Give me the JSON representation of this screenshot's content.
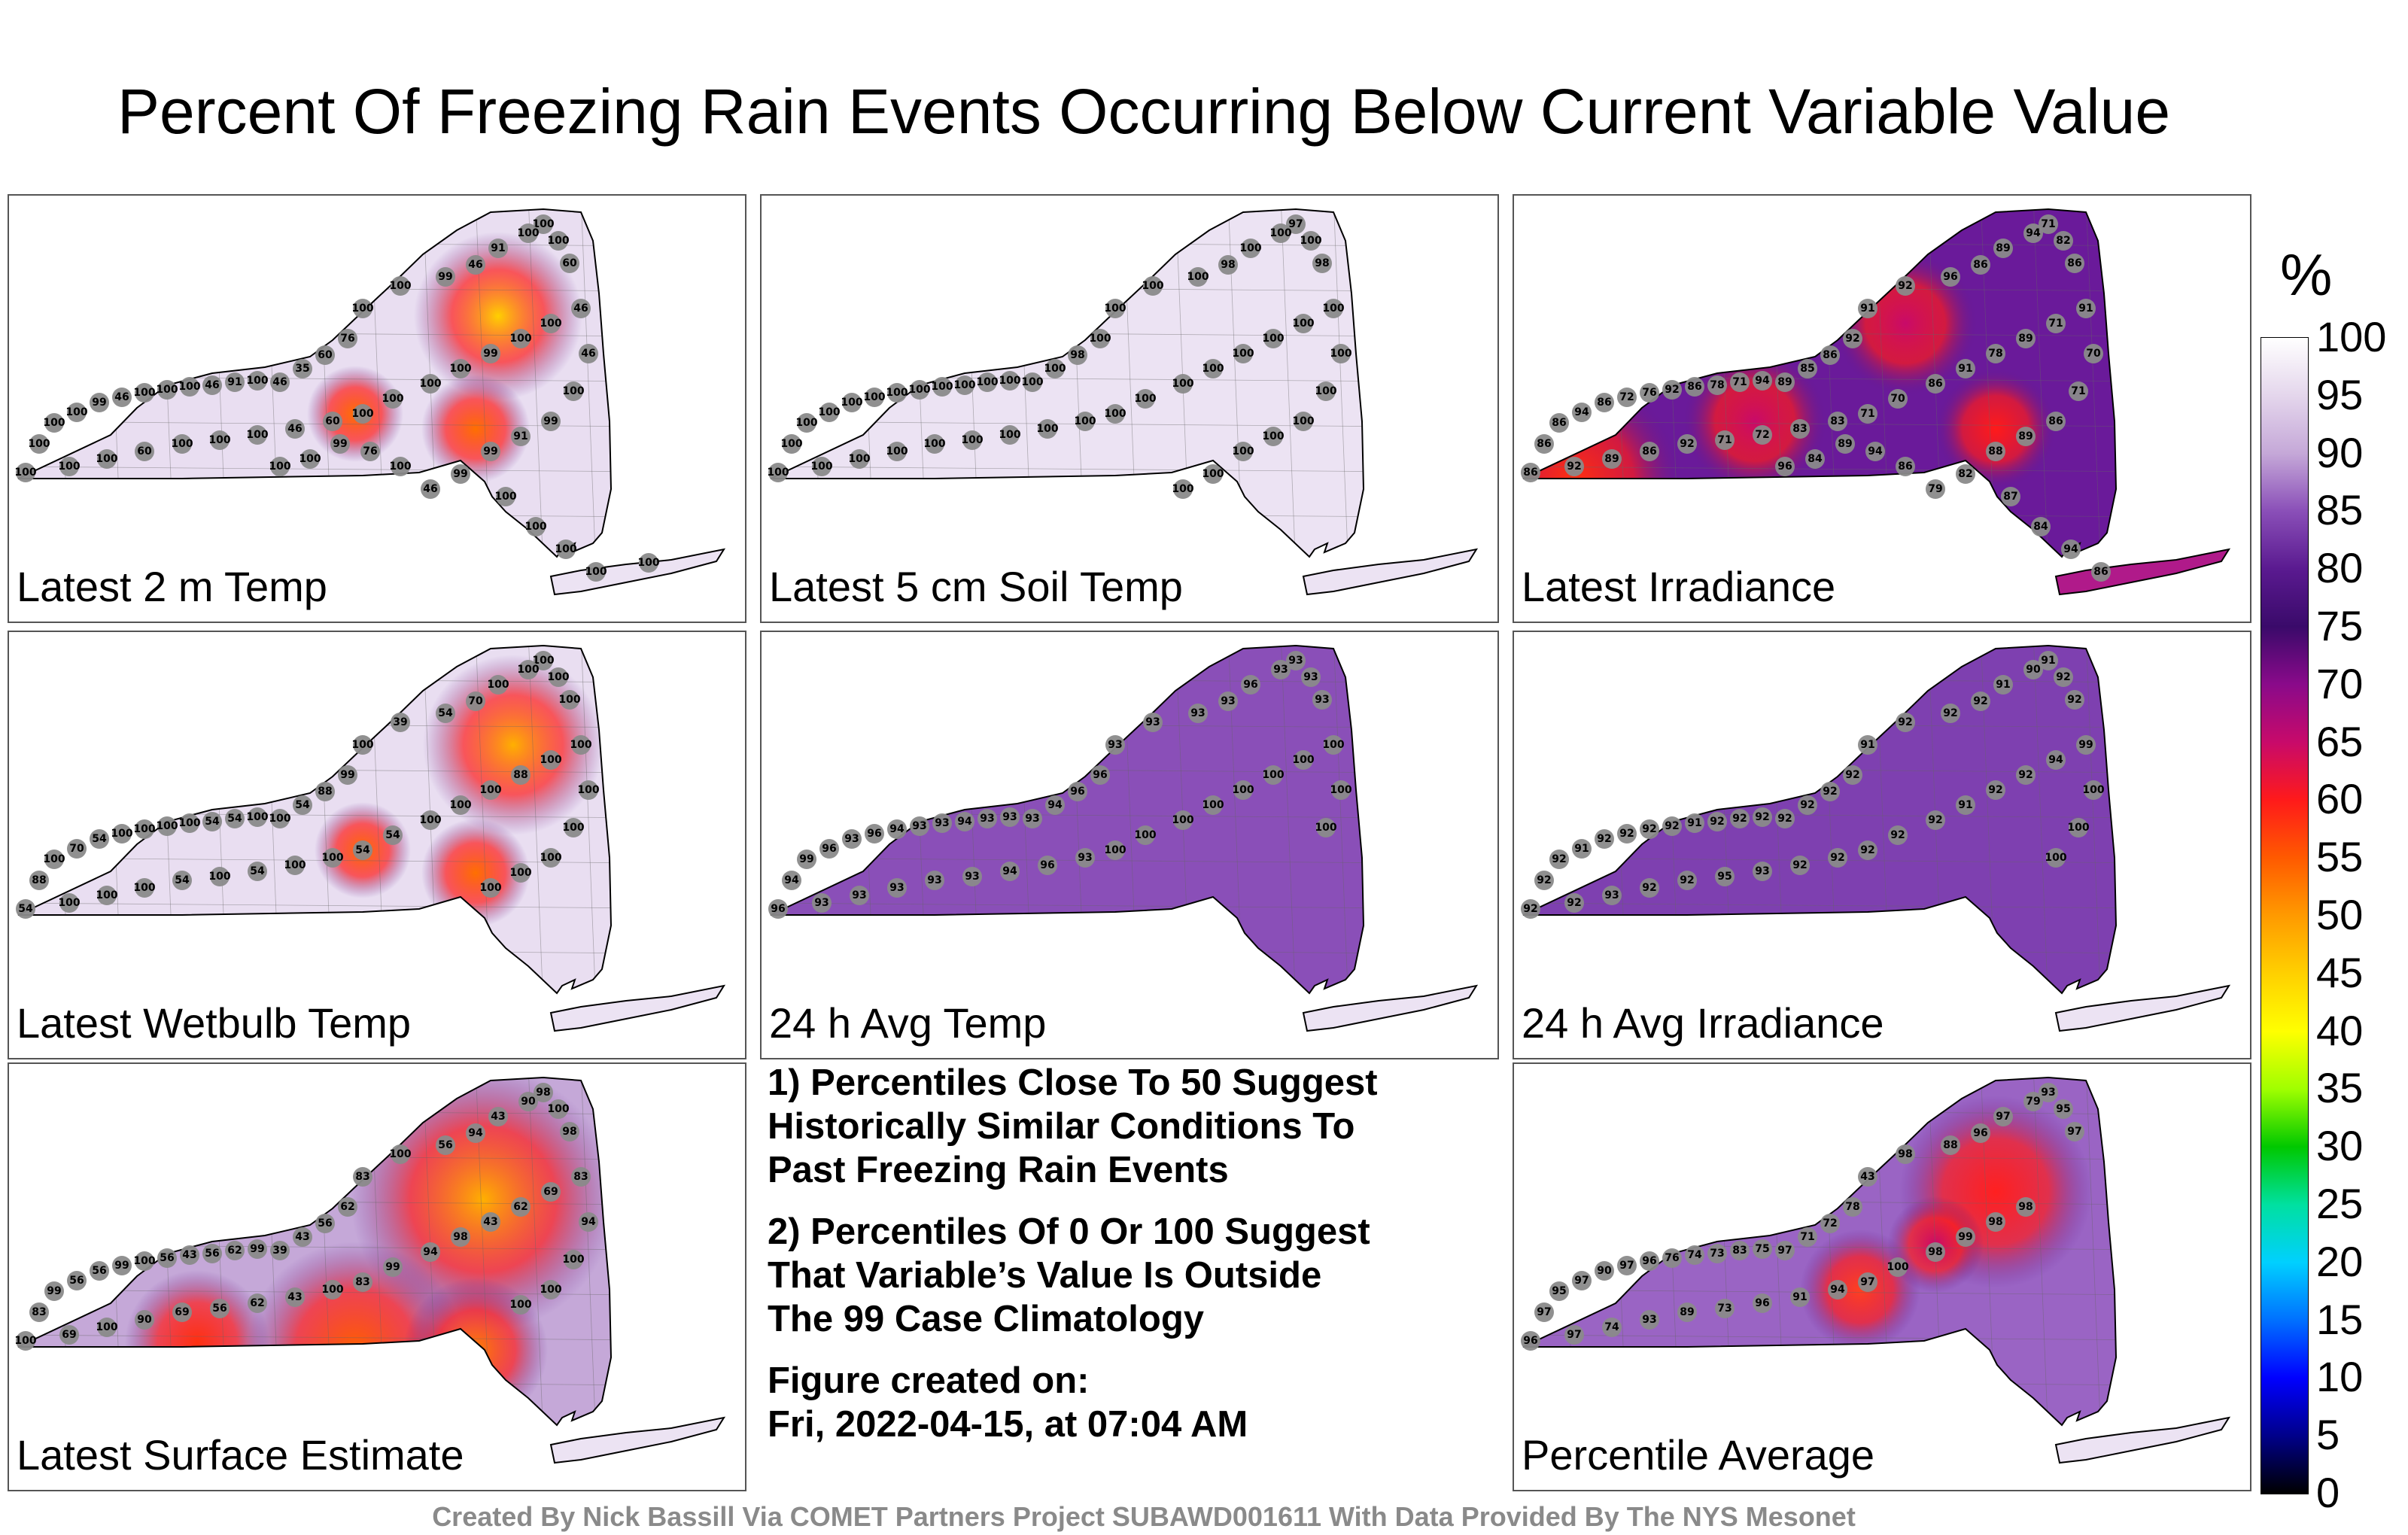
{
  "title": "Percent Of Freezing Rain Events Occurring Below Current Variable Value",
  "colorbar": {
    "unit": "%",
    "ticks": [
      "100",
      "95",
      "90",
      "85",
      "80",
      "75",
      "70",
      "65",
      "60",
      "55",
      "50",
      "45",
      "40",
      "35",
      "30",
      "25",
      "20",
      "15",
      "10",
      "5",
      "0"
    ],
    "colors": [
      "#ffffff",
      "#e4d6ec",
      "#c5a8d8",
      "#8a4fb8",
      "#5a1a90",
      "#3a0a6a",
      "#8a0a8a",
      "#c80a6a",
      "#ff1a1a",
      "#ff5a00",
      "#ff9a00",
      "#ffd000",
      "#ffff00",
      "#a0ff00",
      "#00c800",
      "#00e0a0",
      "#00d0ff",
      "#0070ff",
      "#0000ff",
      "#00008a",
      "#000000"
    ]
  },
  "panels": [
    {
      "label": "Latest 2 m Temp",
      "stations": [
        "100",
        "100",
        "60",
        "100",
        "91",
        "46",
        "99",
        "100",
        "100",
        "76",
        "60",
        "35",
        "46",
        "100",
        "91",
        "46",
        "100",
        "100",
        "100",
        "46",
        "99",
        "100",
        "100",
        "100",
        "100",
        "100",
        "100",
        "60",
        "100",
        "100",
        "100",
        "46",
        "60",
        "100",
        "100",
        "100",
        "100",
        "99",
        "100",
        "100",
        "46",
        "46",
        "100",
        "99",
        "91",
        "99",
        "99",
        "46",
        "100",
        "76",
        "99",
        "100",
        "100",
        "100",
        "100",
        "100",
        "100",
        "100"
      ]
    },
    {
      "label": "Latest 5 cm Soil Temp",
      "stations": [
        "97",
        "100",
        "98",
        "100",
        "100",
        "98",
        "100",
        "100",
        "100",
        "100",
        "98",
        "100",
        "100",
        "100",
        "100",
        "100",
        "100",
        "100",
        "100",
        "100",
        "100",
        "100",
        "100",
        "100",
        "100",
        "100",
        "100",
        "100",
        "100",
        "100",
        "100",
        "100",
        "100",
        "100",
        "100",
        "100",
        "100",
        "100",
        "100",
        "100",
        "100",
        "100",
        "100",
        "100",
        "100",
        "100",
        "100",
        "100"
      ]
    },
    {
      "label": "Latest Irradiance",
      "stations": [
        "71",
        "82",
        "86",
        "94",
        "89",
        "86",
        "96",
        "92",
        "91",
        "92",
        "86",
        "85",
        "89",
        "94",
        "71",
        "78",
        "86",
        "92",
        "76",
        "72",
        "86",
        "94",
        "86",
        "86",
        "86",
        "92",
        "89",
        "86",
        "92",
        "71",
        "72",
        "83",
        "83",
        "71",
        "70",
        "86",
        "91",
        "78",
        "89",
        "71",
        "91",
        "70",
        "71",
        "86",
        "89",
        "88",
        "82",
        "79",
        "86",
        "94",
        "89",
        "84",
        "96",
        "87",
        "84",
        "94",
        "86"
      ]
    },
    {
      "label": "Latest Wetbulb Temp",
      "stations": [
        "100",
        "100",
        "100",
        "100",
        "100",
        "70",
        "54",
        "39",
        "100",
        "99",
        "88",
        "54",
        "100",
        "100",
        "54",
        "54",
        "100",
        "100",
        "100",
        "100",
        "54",
        "70",
        "100",
        "88",
        "54",
        "100",
        "100",
        "100",
        "54",
        "100",
        "54",
        "100",
        "100",
        "54",
        "54",
        "100",
        "100",
        "100",
        "88",
        "100",
        "100",
        "100",
        "100",
        "100",
        "100",
        "100"
      ]
    },
    {
      "label": "24 h Avg Temp",
      "stations": [
        "93",
        "93",
        "93",
        "93",
        "96",
        "93",
        "93",
        "93",
        "93",
        "96",
        "96",
        "94",
        "93",
        "93",
        "93",
        "94",
        "93",
        "93",
        "94",
        "96",
        "93",
        "96",
        "99",
        "94",
        "96",
        "93",
        "93",
        "93",
        "93",
        "93",
        "94",
        "96",
        "93",
        "100",
        "100",
        "100",
        "100",
        "100",
        "100",
        "100",
        "100",
        "100",
        "100"
      ]
    },
    {
      "label": "24 h Avg Irradiance",
      "stations": [
        "91",
        "92",
        "92",
        "90",
        "91",
        "92",
        "92",
        "92",
        "91",
        "92",
        "92",
        "92",
        "92",
        "92",
        "92",
        "92",
        "91",
        "92",
        "92",
        "92",
        "92",
        "91",
        "92",
        "92",
        "92",
        "92",
        "93",
        "92",
        "92",
        "95",
        "93",
        "92",
        "92",
        "92",
        "92",
        "92",
        "91",
        "92",
        "92",
        "94",
        "99",
        "100",
        "100",
        "100"
      ]
    },
    {
      "label": "Latest Surface Estimate",
      "stations": [
        "98",
        "100",
        "98",
        "90",
        "43",
        "94",
        "56",
        "100",
        "83",
        "62",
        "56",
        "43",
        "39",
        "99",
        "62",
        "56",
        "43",
        "56",
        "100",
        "99",
        "56",
        "56",
        "99",
        "83",
        "100",
        "69",
        "100",
        "90",
        "69",
        "56",
        "62",
        "43",
        "100",
        "83",
        "99",
        "94",
        "98",
        "43",
        "62",
        "69",
        "83",
        "94",
        "100",
        "100",
        "100"
      ]
    },
    {
      "label": "Percentile Average",
      "stations": [
        "93",
        "95",
        "97",
        "79",
        "97",
        "96",
        "88",
        "98",
        "43",
        "78",
        "72",
        "71",
        "97",
        "75",
        "83",
        "73",
        "74",
        "76",
        "96",
        "97",
        "90",
        "97",
        "95",
        "97",
        "96",
        "97",
        "74",
        "93",
        "89",
        "73",
        "96",
        "91",
        "94",
        "97",
        "100",
        "98",
        "99",
        "98",
        "98"
      ]
    }
  ],
  "notes": [
    "1) Percentiles Close To 50 Suggest\nHistorically Similar Conditions To\nPast Freezing Rain Events",
    "2) Percentiles Of 0 Or 100 Suggest\nThat Variable’s Value Is Outside\nThe 99 Case Climatology",
    "Figure created on:\nFri, 2022-04-15, at 07:04 AM"
  ],
  "credit": "Created By Nick Bassill Via COMET Partners Project SUBAWD001611 With Data Provided By The NYS Mesonet"
}
